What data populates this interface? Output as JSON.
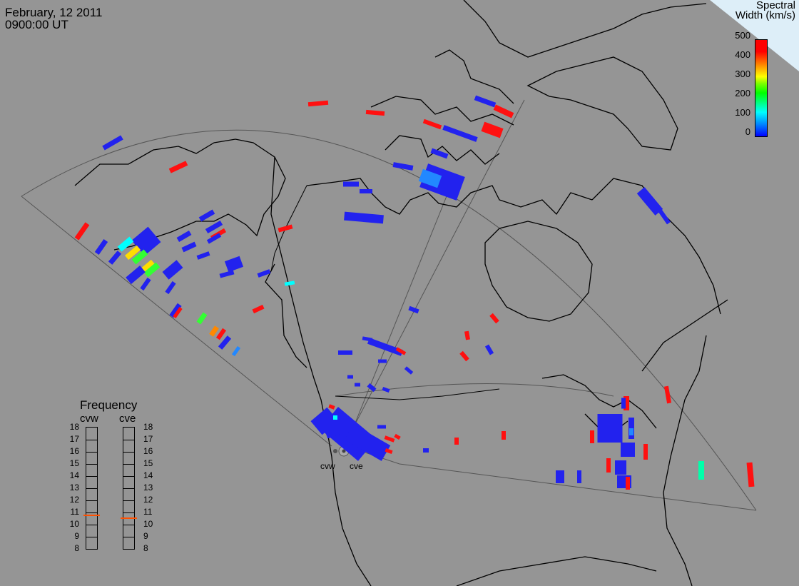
{
  "header": {
    "date": "February, 12 2011",
    "time": "0900:00 UT"
  },
  "colorbar": {
    "title_line1": "Spectral",
    "title_line2": "Width (km/s)",
    "ticks": [
      "500",
      "400",
      "300",
      "200",
      "100",
      "0"
    ],
    "range": [
      0,
      500
    ],
    "colors": [
      "#0000ff",
      "#0080ff",
      "#00ffff",
      "#00ff80",
      "#00ff00",
      "#80ff00",
      "#ffff00",
      "#ff8000",
      "#ff0000"
    ]
  },
  "radars": {
    "west": "cvw",
    "east": "cve"
  },
  "frequency_panel": {
    "title": "Frequency",
    "ticks": [
      "18",
      "17",
      "16",
      "15",
      "14",
      "13",
      "12",
      "11",
      "10",
      "9",
      "8"
    ],
    "cvw_mhz": 10.8,
    "cve_mhz": 10.6
  },
  "colors": {
    "background": "#959595",
    "coastline": "#000000",
    "fov_outline": "#555555",
    "corner_wedge": "#ddeef8",
    "freq_marker": "#ff5000"
  }
}
